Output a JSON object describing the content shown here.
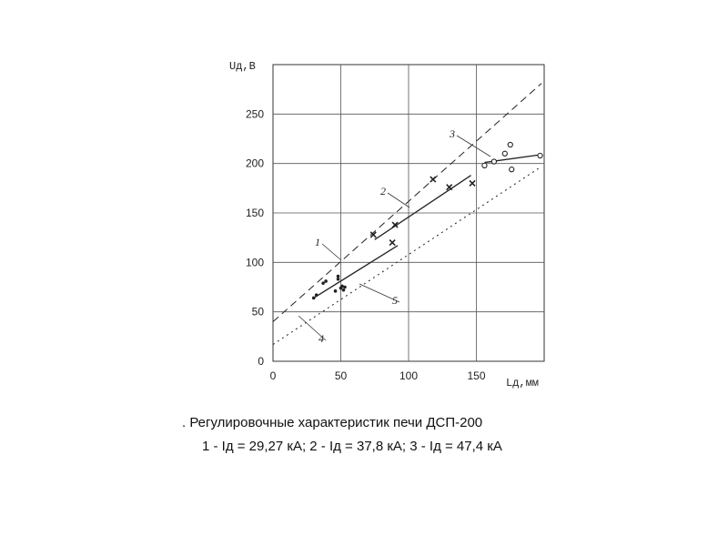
{
  "chart_data": {
    "type": "scatter",
    "xlabel": "Lд,мм",
    "ylabel": "Uд,В",
    "xlim": [
      0,
      200
    ],
    "ylim": [
      0,
      300
    ],
    "x_ticks": [
      0,
      50,
      100,
      150
    ],
    "y_ticks": [
      0,
      50,
      100,
      150,
      200,
      250
    ],
    "grid": true,
    "series": [
      {
        "name": "1",
        "line": [
          [
            30,
            64
          ],
          [
            92,
            117
          ]
        ],
        "points": [
          [
            30,
            64
          ],
          [
            32,
            67
          ],
          [
            37,
            79
          ],
          [
            39,
            81
          ],
          [
            46,
            71
          ],
          [
            48,
            83
          ],
          [
            48,
            86
          ],
          [
            50,
            74
          ],
          [
            51,
            76
          ],
          [
            52,
            72
          ],
          [
            53,
            75
          ]
        ],
        "marker": "dot"
      },
      {
        "name": "2",
        "line": [
          [
            75,
            123
          ],
          [
            146,
            188
          ]
        ],
        "points": [
          [
            74,
            128
          ],
          [
            88,
            120
          ],
          [
            90,
            138
          ],
          [
            118,
            184
          ],
          [
            130,
            176
          ],
          [
            147,
            180
          ]
        ],
        "marker": "x"
      },
      {
        "name": "3",
        "line": [
          [
            156,
            201
          ],
          [
            198,
            209
          ]
        ],
        "points": [
          [
            156,
            198
          ],
          [
            163,
            202
          ],
          [
            171,
            210
          ],
          [
            175,
            219
          ],
          [
            176,
            194
          ],
          [
            197,
            208
          ]
        ],
        "marker": "circle"
      },
      {
        "name": "4",
        "line": [
          [
            0,
            40
          ],
          [
            198,
            281
          ]
        ],
        "style": "dashed"
      },
      {
        "name": "5",
        "line": [
          [
            0,
            17
          ],
          [
            198,
            197
          ]
        ],
        "style": "dotted"
      }
    ],
    "caption_line1": ". Регулировочные характеристик печи ДСП-200",
    "caption_line2": "1 - Iд = 29,27 кА; 2 - Iд = 37,8 кА; 3 - Iд = 47,4 кА"
  }
}
